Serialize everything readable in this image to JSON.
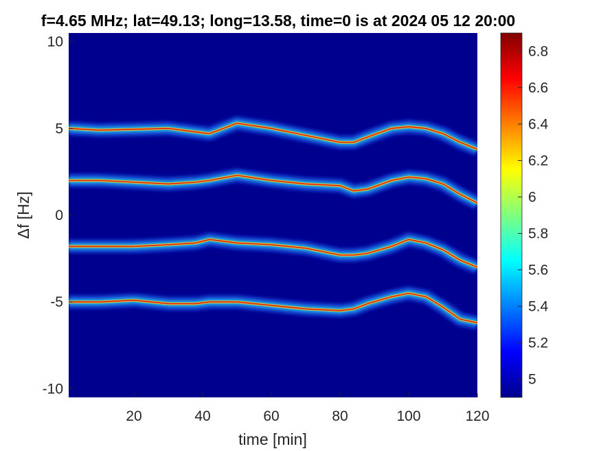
{
  "chart_data": {
    "type": "heatmap",
    "title": "f=4.65 MHz;  lat=49.13; long=13.58, time=0 is at 2024 05 12 20:00",
    "xlabel": "time [min]",
    "ylabel": "Δf [Hz]",
    "xlim": [
      1,
      120
    ],
    "ylim": [
      -10.5,
      10.5
    ],
    "xticks": [
      "20",
      "40",
      "60",
      "80",
      "100",
      "120"
    ],
    "xtick_values": [
      20,
      40,
      60,
      80,
      100,
      120
    ],
    "yticks": [
      "10",
      "5",
      "0",
      "-5",
      "-10"
    ],
    "ytick_values": [
      10,
      5,
      0,
      -5,
      -10
    ],
    "background_color": "#00008F",
    "colorbar": {
      "range": [
        4.9,
        6.9
      ],
      "ticks": [
        "5",
        "5.2",
        "5.4",
        "5.6",
        "5.8",
        "6",
        "6.2",
        "6.4",
        "6.6",
        "6.8"
      ],
      "tick_values": [
        5,
        5.2,
        5.4,
        5.6,
        5.8,
        6,
        6.2,
        6.4,
        6.6,
        6.8
      ],
      "colormap": "jet"
    },
    "traces": [
      {
        "x": [
          1,
          10,
          20,
          30,
          38,
          42,
          50,
          60,
          70,
          80,
          84,
          88,
          95,
          100,
          105,
          110,
          115,
          120
        ],
        "y": [
          5.0,
          4.9,
          4.95,
          5.0,
          4.8,
          4.7,
          5.3,
          5.0,
          4.6,
          4.2,
          4.2,
          4.5,
          5.0,
          5.1,
          5.0,
          4.7,
          4.2,
          3.8
        ]
      },
      {
        "x": [
          1,
          10,
          20,
          30,
          38,
          42,
          50,
          60,
          70,
          80,
          84,
          88,
          95,
          100,
          105,
          110,
          115,
          120
        ],
        "y": [
          2.0,
          2.0,
          1.9,
          1.8,
          1.9,
          2.0,
          2.3,
          2.0,
          1.8,
          1.7,
          1.4,
          1.5,
          2.0,
          2.2,
          2.1,
          1.8,
          1.2,
          0.7
        ]
      },
      {
        "x": [
          1,
          10,
          20,
          30,
          38,
          42,
          50,
          60,
          70,
          80,
          84,
          88,
          95,
          100,
          105,
          110,
          115,
          120
        ],
        "y": [
          -1.8,
          -1.8,
          -1.8,
          -1.7,
          -1.6,
          -1.4,
          -1.6,
          -1.7,
          -1.9,
          -2.3,
          -2.3,
          -2.2,
          -1.8,
          -1.4,
          -1.6,
          -2.0,
          -2.6,
          -3.0
        ]
      },
      {
        "x": [
          1,
          10,
          20,
          30,
          38,
          42,
          50,
          60,
          70,
          80,
          84,
          88,
          95,
          100,
          105,
          110,
          115,
          120
        ],
        "y": [
          -5.0,
          -5.0,
          -4.9,
          -5.1,
          -5.1,
          -5.0,
          -5.0,
          -5.2,
          -5.4,
          -5.5,
          -5.4,
          -5.1,
          -4.7,
          -4.5,
          -4.7,
          -5.3,
          -6.0,
          -6.2
        ]
      }
    ]
  }
}
